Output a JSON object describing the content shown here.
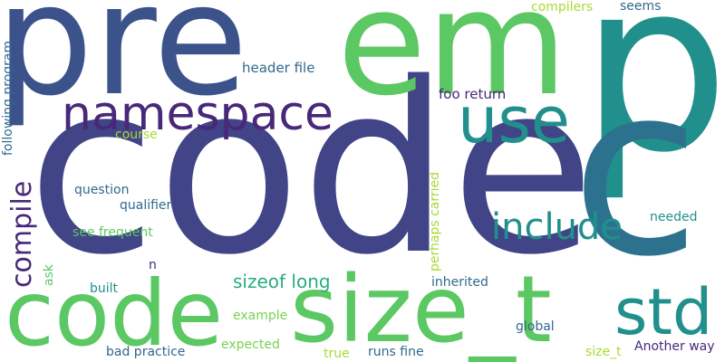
{
  "palette": {
    "dark_purple": "#482878",
    "indigo": "#414487",
    "slate_blue": "#3b528b",
    "steel_blue": "#31688e",
    "teal_blue": "#2c728e",
    "teal": "#21908d",
    "sea_green": "#27ad81",
    "green": "#5cc863",
    "light_green": "#7ad151",
    "lime": "#a8db34"
  },
  "words": [
    {
      "id": "code-main",
      "text": "code",
      "color": "#414487"
    },
    {
      "id": "pre",
      "text": "pre",
      "color": "#3b528b"
    },
    {
      "id": "em",
      "text": "em",
      "color": "#5cc863"
    },
    {
      "id": "p",
      "text": "p",
      "color": "#21908d"
    },
    {
      "id": "c",
      "text": "c",
      "color": "#2c728e"
    },
    {
      "id": "code-small",
      "text": "code",
      "color": "#5cc863"
    },
    {
      "id": "size_t-big",
      "text": "size_t",
      "color": "#5cc863"
    },
    {
      "id": "std",
      "text": "std",
      "color": "#21908d"
    },
    {
      "id": "namespace",
      "text": "namespace",
      "color": "#482878"
    },
    {
      "id": "use",
      "text": "use",
      "color": "#21908d"
    },
    {
      "id": "include",
      "text": "include",
      "color": "#21908d"
    },
    {
      "id": "compile",
      "text": "compile",
      "color": "#482878"
    },
    {
      "id": "sizeof-long",
      "text": "sizeof long",
      "color": "#27ad81"
    },
    {
      "id": "header-file",
      "text": "header file",
      "color": "#31688e"
    },
    {
      "id": "foo-return",
      "text": "foo return",
      "color": "#482878"
    },
    {
      "id": "compilers",
      "text": "compilers",
      "color": "#a8db34"
    },
    {
      "id": "seems",
      "text": "seems",
      "color": "#31688e"
    },
    {
      "id": "following-program",
      "text": "following program",
      "color": "#31688e"
    },
    {
      "id": "course",
      "text": "course",
      "color": "#a8db34"
    },
    {
      "id": "question",
      "text": "question",
      "color": "#31688e"
    },
    {
      "id": "qualifier",
      "text": "qualifier",
      "color": "#31688e"
    },
    {
      "id": "see-frequent",
      "text": "see frequent",
      "color": "#5cc863"
    },
    {
      "id": "perhaps-carried",
      "text": "perhaps carried",
      "color": "#a8db34"
    },
    {
      "id": "needed",
      "text": "needed",
      "color": "#21908d"
    },
    {
      "id": "n",
      "text": "n",
      "color": "#482878"
    },
    {
      "id": "ask",
      "text": "ask",
      "color": "#5cc863"
    },
    {
      "id": "built",
      "text": "built",
      "color": "#21908d"
    },
    {
      "id": "inherited",
      "text": "inherited",
      "color": "#31688e"
    },
    {
      "id": "example",
      "text": "example",
      "color": "#7ad151"
    },
    {
      "id": "global",
      "text": "global",
      "color": "#31688e"
    },
    {
      "id": "expected",
      "text": "expected",
      "color": "#7ad151"
    },
    {
      "id": "bad-practice",
      "text": "bad practice",
      "color": "#31688e"
    },
    {
      "id": "true",
      "text": "true",
      "color": "#a8db34"
    },
    {
      "id": "runs-fine",
      "text": "runs fine",
      "color": "#31688e"
    },
    {
      "id": "size_t-small",
      "text": "size_t",
      "color": "#a8db34"
    },
    {
      "id": "another-way",
      "text": "Another way",
      "color": "#482878"
    }
  ]
}
